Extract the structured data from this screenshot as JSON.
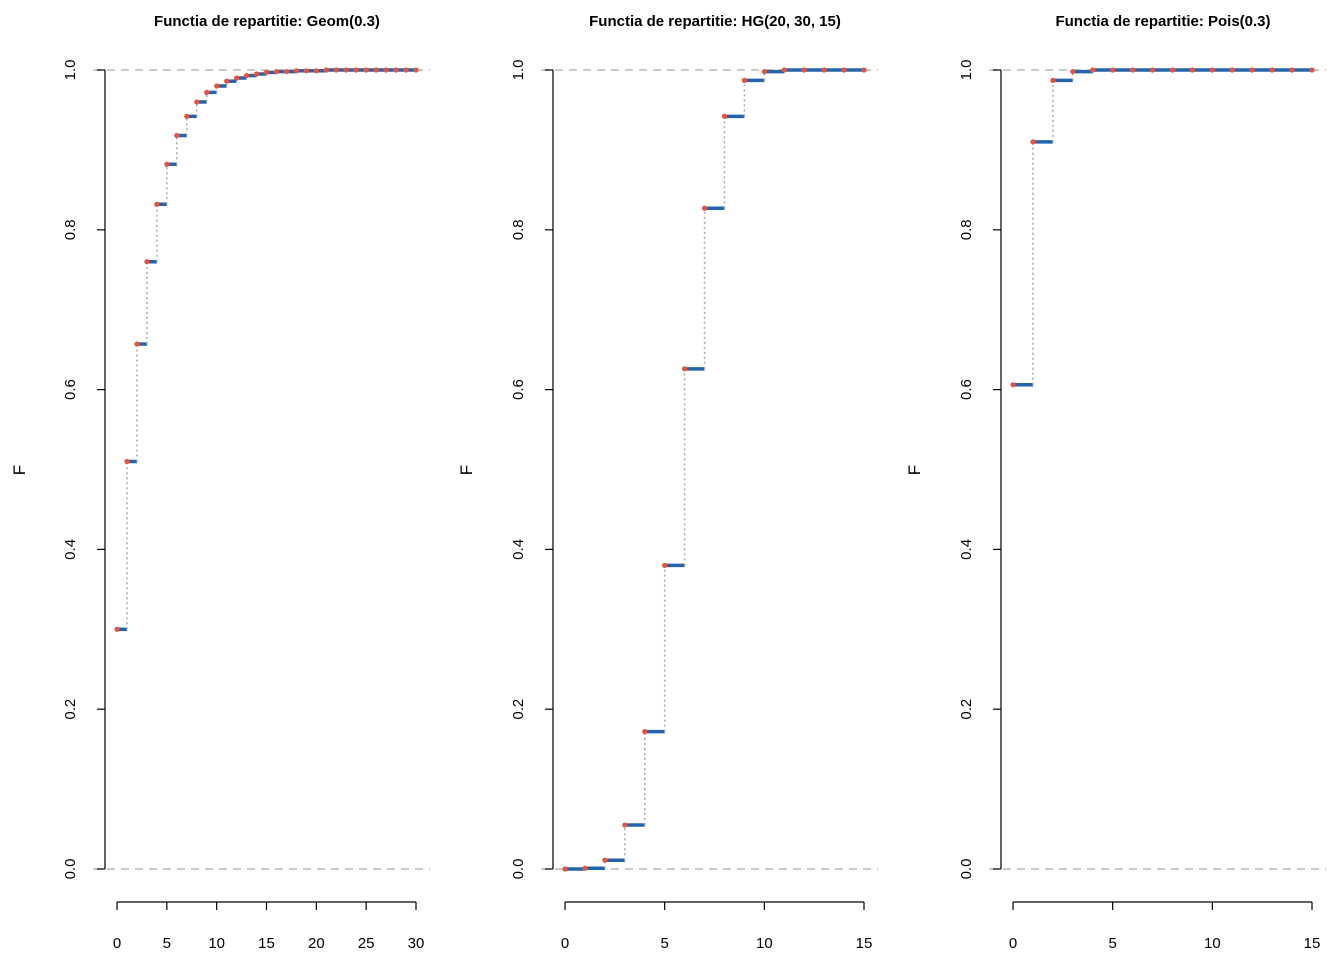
{
  "colors": {
    "step": "#2166ac",
    "point": "#e8523e",
    "jump": "#a8a8a8",
    "refline": "#b8b8b8",
    "axis": "#000000"
  },
  "chart_data": [
    {
      "type": "line",
      "title": "Functia de repartitie: Geom(0.3)",
      "xlabel": "",
      "ylabel": "F",
      "xlim": [
        0,
        30
      ],
      "ylim": [
        0,
        1
      ],
      "xticks": [
        "0",
        "5",
        "10",
        "15",
        "20",
        "25",
        "30"
      ],
      "yticks": [
        "0.0",
        "0.2",
        "0.4",
        "0.6",
        "0.8",
        "1.0"
      ],
      "reference_lines_y": [
        0,
        1
      ],
      "grid": false,
      "x": [
        0,
        1,
        2,
        3,
        4,
        5,
        6,
        7,
        8,
        9,
        10,
        11,
        12,
        13,
        14,
        15,
        16,
        17,
        18,
        19,
        20,
        21,
        22,
        23,
        24,
        25,
        26,
        27,
        28,
        29,
        30
      ],
      "values": [
        0.3,
        0.51,
        0.657,
        0.76,
        0.832,
        0.882,
        0.918,
        0.942,
        0.96,
        0.972,
        0.98,
        0.986,
        0.99,
        0.993,
        0.995,
        0.997,
        0.998,
        0.998,
        0.999,
        0.999,
        0.999,
        1.0,
        1.0,
        1.0,
        1.0,
        1.0,
        1.0,
        1.0,
        1.0,
        1.0,
        1.0
      ]
    },
    {
      "type": "line",
      "title": "Functia de repartitie: HG(20, 30, 15)",
      "xlabel": "",
      "ylabel": "F",
      "xlim": [
        0,
        15
      ],
      "ylim": [
        0,
        1
      ],
      "xticks": [
        "0",
        "5",
        "10",
        "15"
      ],
      "yticks": [
        "0.0",
        "0.2",
        "0.4",
        "0.6",
        "0.8",
        "1.0"
      ],
      "reference_lines_y": [
        0,
        1
      ],
      "grid": false,
      "x": [
        0,
        1,
        2,
        3,
        4,
        5,
        6,
        7,
        8,
        9,
        10,
        11,
        12,
        13,
        14,
        15
      ],
      "values": [
        0.0,
        0.001,
        0.011,
        0.055,
        0.172,
        0.38,
        0.626,
        0.827,
        0.942,
        0.987,
        0.998,
        1.0,
        1.0,
        1.0,
        1.0,
        1.0
      ]
    },
    {
      "type": "line",
      "title": "Functia de repartitie: Pois(0.3)",
      "xlabel": "",
      "ylabel": "F",
      "xlim": [
        0,
        15
      ],
      "ylim": [
        0,
        1
      ],
      "xticks": [
        "0",
        "5",
        "10",
        "15"
      ],
      "yticks": [
        "0.0",
        "0.2",
        "0.4",
        "0.6",
        "0.8",
        "1.0"
      ],
      "reference_lines_y": [
        0,
        1
      ],
      "grid": false,
      "x": [
        0,
        1,
        2,
        3,
        4,
        5,
        6,
        7,
        8,
        9,
        10,
        11,
        12,
        13,
        14,
        15
      ],
      "values": [
        0.606,
        0.91,
        0.987,
        0.998,
        1.0,
        1.0,
        1.0,
        1.0,
        1.0,
        1.0,
        1.0,
        1.0,
        1.0,
        1.0,
        1.0,
        1.0
      ]
    }
  ]
}
